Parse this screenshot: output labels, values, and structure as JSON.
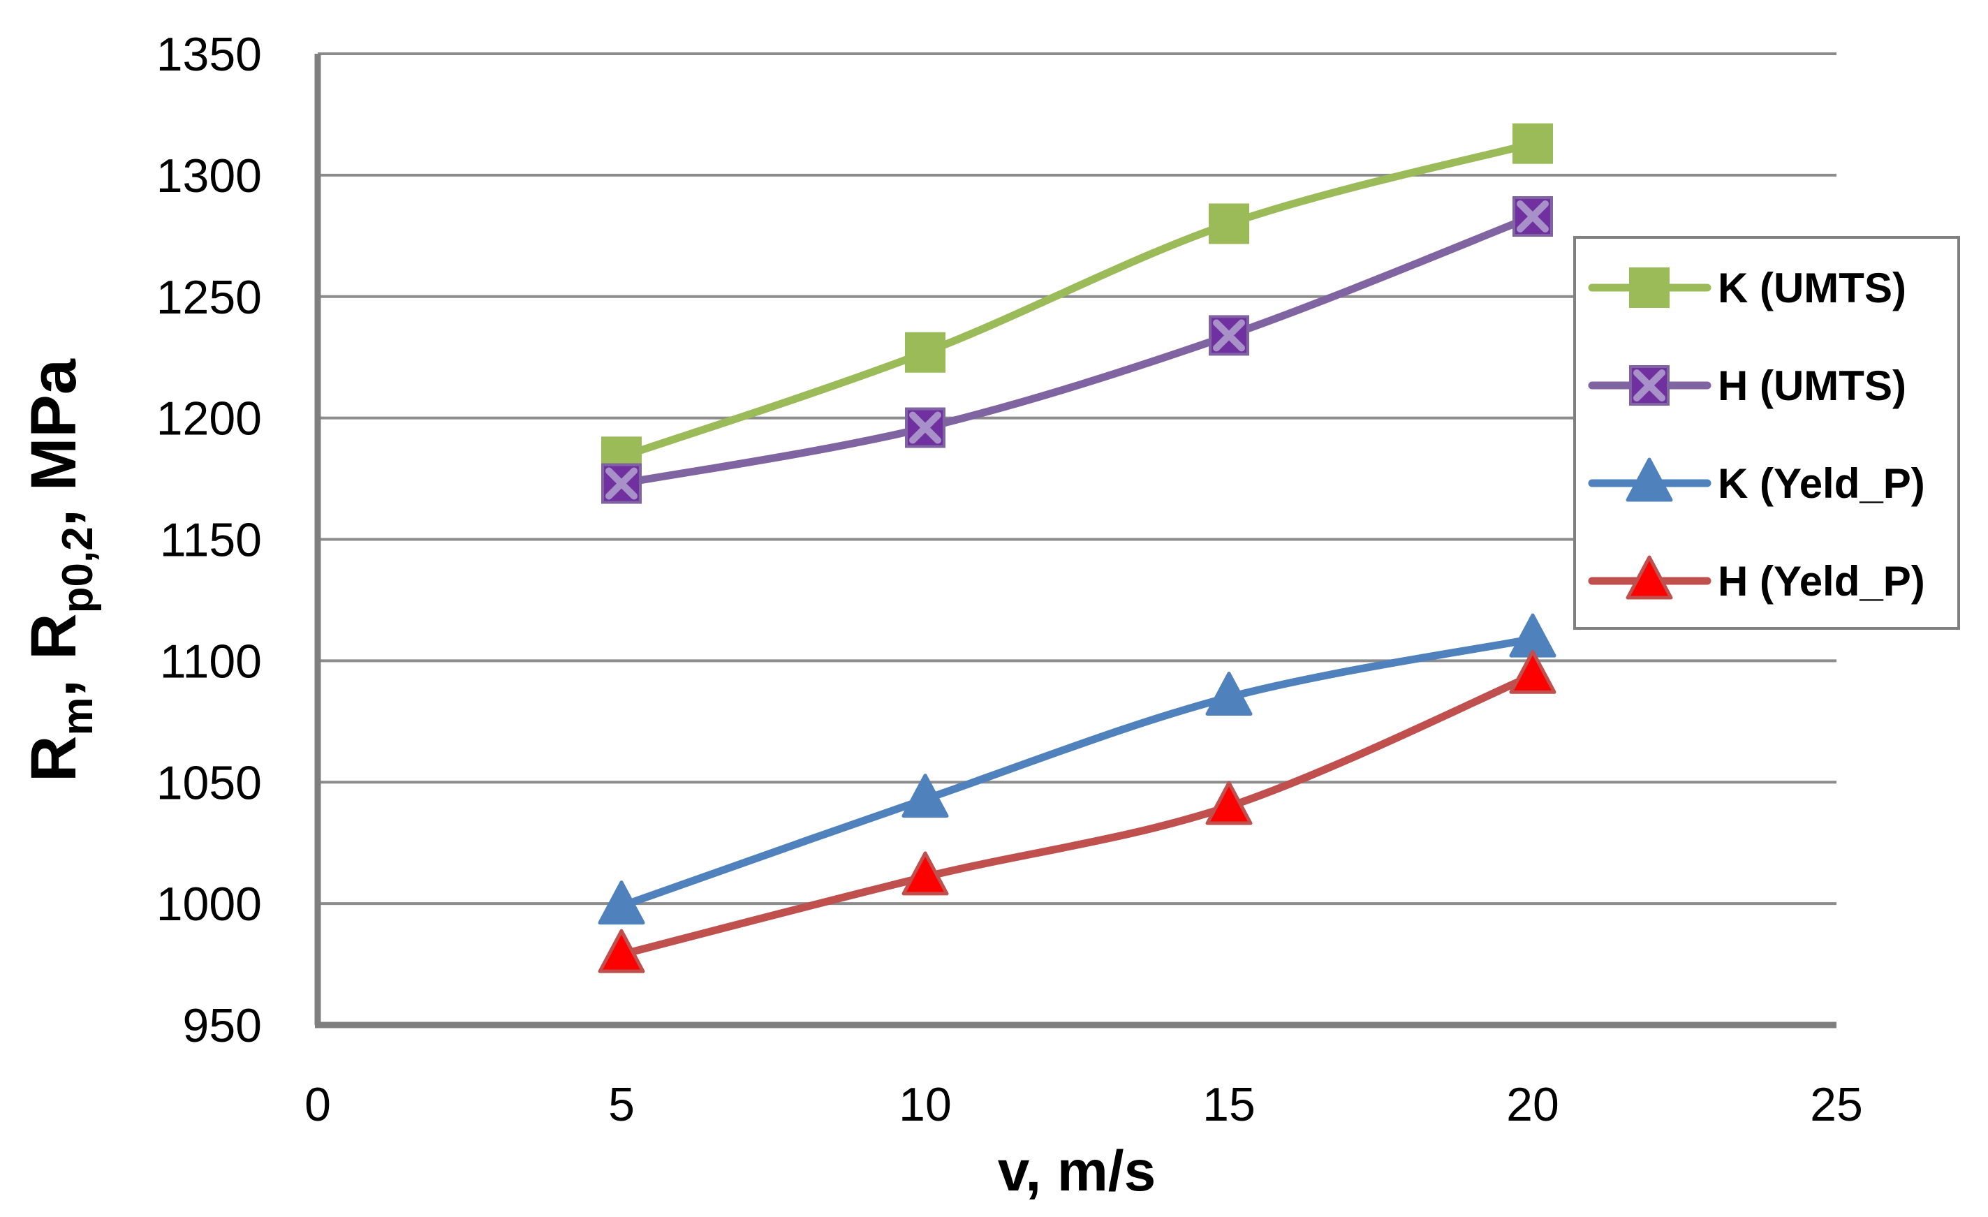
{
  "chart_data": {
    "type": "line",
    "title": "",
    "xlabel": "v, m/s",
    "ylabel": {
      "main": "R",
      "sub_m": "m",
      "sep": ",",
      "main2": "R",
      "sub_p": "p0,2",
      "unit": ", MPa"
    },
    "xlim": [
      0,
      25
    ],
    "ylim": [
      950,
      1350
    ],
    "xticks": [
      0,
      5,
      10,
      15,
      20,
      25
    ],
    "yticks": [
      950,
      1000,
      1050,
      1100,
      1150,
      1200,
      1250,
      1300,
      1350
    ],
    "grid": true,
    "legend_position": "right",
    "series": [
      {
        "name": "K (UMTS)",
        "marker": "square",
        "color": "#9BBB59",
        "marker_color": "#9BBB59",
        "x": [
          5,
          10,
          15,
          20
        ],
        "y": [
          1184,
          1227,
          1280,
          1313
        ]
      },
      {
        "name": "H (UMTS)",
        "marker": "x-square",
        "color": "#8064A2",
        "marker_color": "#7030A0",
        "x": [
          5,
          10,
          15,
          20
        ],
        "y": [
          1173,
          1196,
          1234,
          1283
        ]
      },
      {
        "name": "K (Yeld_P)",
        "marker": "triangle",
        "color": "#4F81BD",
        "marker_color": "#4F81BD",
        "x": [
          5,
          10,
          15,
          20
        ],
        "y": [
          999,
          1043,
          1085,
          1109
        ]
      },
      {
        "name": "H (Yeld_P)",
        "marker": "triangle",
        "color": "#C0504D",
        "marker_color": "#FF0000",
        "x": [
          5,
          10,
          15,
          20
        ],
        "y": [
          979,
          1011,
          1040,
          1094
        ]
      }
    ]
  }
}
